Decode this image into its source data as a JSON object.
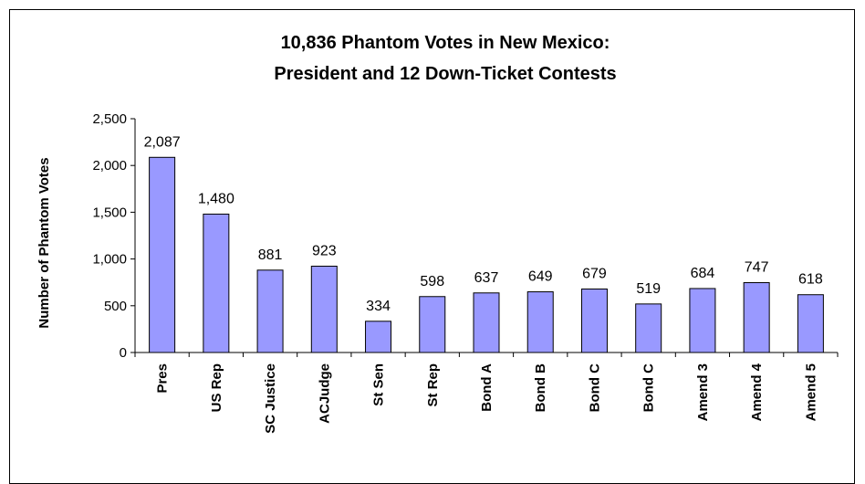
{
  "chart_data": {
    "type": "bar",
    "title_lines": [
      "10,836 Phantom Votes in New Mexico:",
      "President and 12 Down-Ticket Contests"
    ],
    "ylabel": "Number of Phantom Votes",
    "xlabel": "",
    "ylim": [
      0,
      2500
    ],
    "yticks": [
      0,
      500,
      1000,
      1500,
      2000,
      2500
    ],
    "ytick_labels": [
      "0",
      "500",
      "1,000",
      "1,500",
      "2,000",
      "2,500"
    ],
    "categories": [
      "Pres",
      "US Rep",
      "SC Justice",
      "ACJudge",
      "St Sen",
      "St Rep",
      "Bond A",
      "Bond B",
      "Bond C",
      "Bond C",
      "Amend 3",
      "Amend 4",
      "Amend 5"
    ],
    "values": [
      2087,
      1480,
      881,
      923,
      334,
      598,
      637,
      649,
      679,
      519,
      684,
      747,
      618
    ],
    "data_labels": [
      "2,087",
      "1,480",
      "881",
      "923",
      "334",
      "598",
      "637",
      "649",
      "679",
      "519",
      "684",
      "747",
      "618"
    ],
    "bar_color": "#9999ff",
    "bar_edge_color": "#000000",
    "grid": false,
    "legend": "none"
  }
}
